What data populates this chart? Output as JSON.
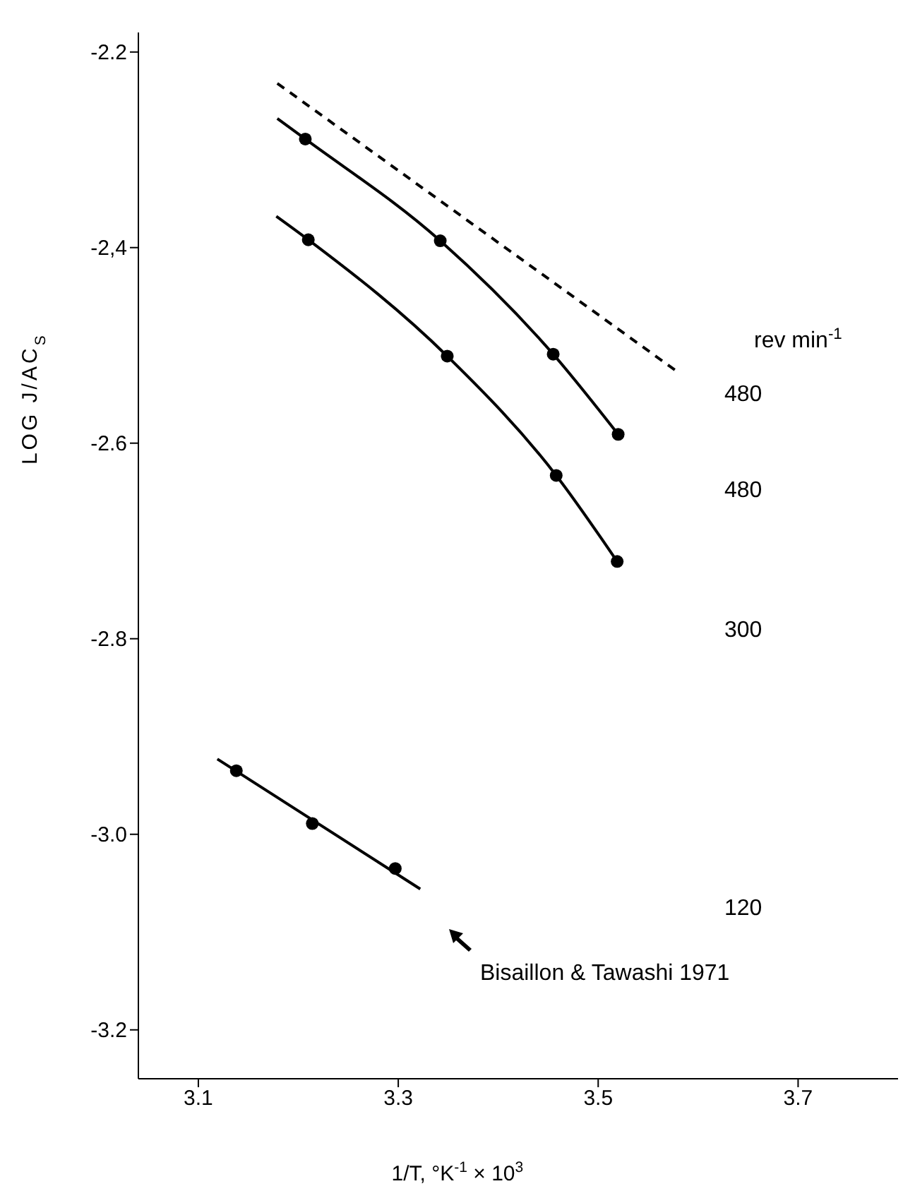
{
  "chart_data": {
    "type": "line",
    "xlabel": "1/T, °K$^{-1}$ × 10$^{3}$",
    "ylabel": "LOG J/AC$_{S}$",
    "xlim": [
      3.04,
      3.8
    ],
    "xticks": [
      3.1,
      3.3,
      3.5,
      3.7
    ],
    "ylim": [
      -3.25,
      -2.18
    ],
    "yticks": [
      -2.2,
      {
        "value": -2.4,
        "label": "-2,4"
      },
      -2.6,
      -2.8,
      {
        "value": -3.0,
        "label": "-3.0"
      },
      -3.2
    ],
    "series": [
      {
        "line_style": "dashed",
        "marker": "none",
        "color": "#000000",
        "x": [
          3.179,
          3.582
        ],
        "values": [
          -2.232,
          -2.529
        ]
      },
      {
        "line_style": "solid",
        "marker": "none",
        "color": "#000000",
        "x": [
          3.179,
          3.207,
          3.342,
          3.455,
          3.52
        ],
        "values": [
          -2.268,
          -2.289,
          -2.393,
          -2.509,
          -2.591
        ]
      },
      {
        "line_style": "solid",
        "marker": "none",
        "color": "#000000",
        "x": [
          3.178,
          3.21,
          3.349,
          3.458,
          3.519
        ],
        "values": [
          -2.368,
          -2.392,
          -2.511,
          -2.633,
          -2.721
        ]
      },
      {
        "line_style": "solid",
        "marker": "none",
        "color": "#000000",
        "x": [
          3.119,
          3.322
        ],
        "values": [
          -2.923,
          -3.056
        ]
      },
      {
        "type": "scatter",
        "marker": "circle",
        "color": "#000000",
        "x": [
          3.207,
          3.342,
          3.455,
          3.52,
          3.21,
          3.349,
          3.458,
          3.519,
          3.138,
          3.214,
          3.297
        ],
        "values": [
          -2.289,
          -2.393,
          -2.509,
          -2.591,
          -2.392,
          -2.511,
          -2.633,
          -2.721,
          -2.935,
          -2.989,
          -3.035
        ]
      }
    ],
    "annotations": [
      "rev min$^{-1}$",
      "480",
      "480",
      "300",
      "120",
      "Bisaillon & Tawashi 1971"
    ]
  }
}
